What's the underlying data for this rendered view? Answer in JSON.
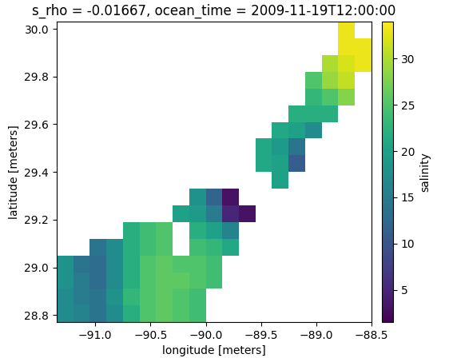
{
  "chart_data": {
    "type": "heatmap",
    "title": "s_rho = -0.01667, ocean_time = 2009-11-19T12:00:00",
    "xlabel": "longitude [meters]",
    "ylabel": "latitude [meters]",
    "colorbar_label": "salinity",
    "color": "viridis",
    "xlim": [
      -91.35,
      -88.5
    ],
    "ylim": [
      28.77,
      30.03
    ],
    "xticks": [
      {
        "value": -91.0,
        "label": "−91.0"
      },
      {
        "value": -90.5,
        "label": "−90.5"
      },
      {
        "value": -90.0,
        "label": "−90.0"
      },
      {
        "value": -89.5,
        "label": "−89.5"
      },
      {
        "value": -89.0,
        "label": "−89.0"
      },
      {
        "value": -88.5,
        "label": "−88.5"
      }
    ],
    "yticks": [
      28.8,
      29.0,
      29.2,
      29.4,
      29.6,
      29.8,
      30.0
    ],
    "color_range": [
      1.5,
      34
    ],
    "color_ticks": [
      5,
      10,
      15,
      20,
      25,
      30
    ],
    "x_edges": [
      -91.35,
      -91.2,
      -91.05,
      -90.9,
      -90.75,
      -90.6,
      -90.45,
      -90.3,
      -90.15,
      -90.0,
      -89.85,
      -89.7,
      -89.55,
      -89.4,
      -89.25,
      -89.1,
      -88.95,
      -88.8,
      -88.65,
      -88.5
    ],
    "y_edges": [
      28.77,
      28.84,
      28.91,
      28.98,
      29.05,
      29.12,
      29.19,
      29.26,
      29.33,
      29.4,
      29.47,
      29.54,
      29.61,
      29.68,
      29.75,
      29.82,
      29.89,
      29.96,
      30.03
    ],
    "cells": [
      [
        17,
        16,
        14,
        17,
        22,
        25,
        26,
        25,
        24,
        null,
        null,
        null,
        null,
        null,
        null,
        null,
        null,
        null,
        null
      ],
      [
        17,
        15,
        14,
        18,
        23,
        25,
        26,
        25,
        24,
        null,
        null,
        null,
        null,
        null,
        null,
        null,
        null,
        null,
        null
      ],
      [
        18,
        15,
        13,
        17,
        22,
        25,
        26,
        26,
        25,
        24,
        null,
        null,
        null,
        null,
        null,
        null,
        null,
        null,
        null
      ],
      [
        18,
        14,
        13,
        17,
        22,
        25,
        26,
        25,
        25,
        24,
        null,
        null,
        null,
        null,
        null,
        null,
        null,
        null,
        null
      ],
      [
        null,
        null,
        14,
        17,
        22,
        24,
        25,
        null,
        24,
        23,
        21,
        null,
        null,
        null,
        null,
        null,
        null,
        null,
        null
      ],
      [
        null,
        null,
        null,
        null,
        22,
        24,
        25,
        null,
        22,
        20,
        16,
        null,
        null,
        null,
        null,
        null,
        null,
        null,
        null
      ],
      [
        null,
        null,
        null,
        null,
        null,
        null,
        null,
        20,
        19,
        15,
        5,
        3,
        null,
        null,
        null,
        null,
        null,
        null,
        null
      ],
      [
        null,
        null,
        null,
        null,
        null,
        null,
        null,
        null,
        18,
        12,
        3,
        null,
        null,
        null,
        null,
        null,
        null,
        null,
        null
      ],
      [
        null,
        null,
        null,
        null,
        null,
        null,
        null,
        null,
        null,
        null,
        null,
        null,
        null,
        20,
        null,
        null,
        null,
        null,
        null
      ],
      [
        null,
        null,
        null,
        null,
        null,
        null,
        null,
        null,
        null,
        null,
        null,
        null,
        21,
        20,
        11,
        null,
        null,
        null,
        null
      ],
      [
        null,
        null,
        null,
        null,
        null,
        null,
        null,
        null,
        null,
        null,
        null,
        null,
        21,
        19,
        14,
        null,
        null,
        null,
        null
      ],
      [
        null,
        null,
        null,
        null,
        null,
        null,
        null,
        null,
        null,
        null,
        null,
        null,
        null,
        21,
        20,
        17,
        null,
        null,
        null
      ],
      [
        null,
        null,
        null,
        null,
        null,
        null,
        null,
        null,
        null,
        null,
        null,
        null,
        null,
        null,
        22,
        22,
        22,
        null,
        null
      ],
      [
        null,
        null,
        null,
        null,
        null,
        null,
        null,
        null,
        null,
        null,
        null,
        null,
        null,
        null,
        null,
        23,
        25,
        28,
        null
      ],
      [
        null,
        null,
        null,
        null,
        null,
        null,
        null,
        null,
        null,
        null,
        null,
        null,
        null,
        null,
        null,
        25,
        29,
        31,
        null
      ],
      [
        null,
        null,
        null,
        null,
        null,
        null,
        null,
        null,
        null,
        null,
        null,
        null,
        null,
        null,
        null,
        null,
        30,
        32,
        33
      ],
      [
        null,
        null,
        null,
        null,
        null,
        null,
        null,
        null,
        null,
        null,
        null,
        null,
        null,
        null,
        null,
        null,
        null,
        33,
        33
      ],
      [
        null,
        null,
        null,
        null,
        null,
        null,
        null,
        null,
        null,
        null,
        null,
        null,
        null,
        null,
        null,
        null,
        null,
        33,
        null
      ]
    ]
  }
}
